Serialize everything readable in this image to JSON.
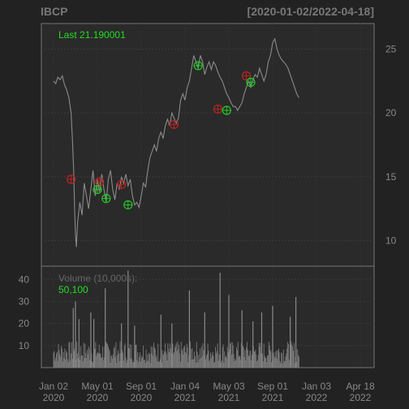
{
  "chart_data": {
    "type": "line",
    "title": "IBCP",
    "date_range": "[2020-01-02/2022-04-18]",
    "last_label": "Last 21.190001",
    "y_ticks": [
      10,
      15,
      20,
      25
    ],
    "ylim": [
      8,
      27
    ],
    "x_ticks": [
      {
        "line1": "Jan 02",
        "line2": "2020",
        "t": 0
      },
      {
        "line1": "May 01",
        "line2": "2020",
        "t": 0.1
      },
      {
        "line1": "Sep 01",
        "line2": "2020",
        "t": 0.2
      },
      {
        "line1": "Jan 04",
        "line2": "2021",
        "t": 0.3
      },
      {
        "line1": "May 03",
        "line2": "2021",
        "t": 0.4
      },
      {
        "line1": "Sep 01",
        "line2": "2021",
        "t": 0.5
      },
      {
        "line1": "Jan 03",
        "line2": "2022",
        "t": 0.6
      },
      {
        "line1": "Apr 18",
        "line2": "2022",
        "t": 0.7
      }
    ],
    "price_series": [
      [
        0.0,
        22.5
      ],
      [
        0.005,
        22.3
      ],
      [
        0.01,
        22.8
      ],
      [
        0.015,
        22.6
      ],
      [
        0.02,
        22.9
      ],
      [
        0.025,
        22.2
      ],
      [
        0.03,
        21.8
      ],
      [
        0.035,
        21.2
      ],
      [
        0.04,
        20.0
      ],
      [
        0.043,
        18.0
      ],
      [
        0.046,
        15.5
      ],
      [
        0.048,
        12.5
      ],
      [
        0.05,
        10.5
      ],
      [
        0.052,
        9.5
      ],
      [
        0.055,
        11.5
      ],
      [
        0.06,
        13.0
      ],
      [
        0.065,
        12.0
      ],
      [
        0.07,
        14.5
      ],
      [
        0.075,
        13.5
      ],
      [
        0.08,
        12.5
      ],
      [
        0.085,
        14.0
      ],
      [
        0.09,
        15.5
      ],
      [
        0.095,
        13.5
      ],
      [
        0.1,
        14.8
      ],
      [
        0.105,
        13.8
      ],
      [
        0.11,
        15.2
      ],
      [
        0.115,
        14.0
      ],
      [
        0.12,
        13.0
      ],
      [
        0.125,
        14.8
      ],
      [
        0.13,
        15.5
      ],
      [
        0.135,
        14.0
      ],
      [
        0.14,
        13.2
      ],
      [
        0.145,
        14.5
      ],
      [
        0.15,
        14.0
      ],
      [
        0.155,
        15.0
      ],
      [
        0.16,
        14.5
      ],
      [
        0.165,
        15.2
      ],
      [
        0.17,
        14.3
      ],
      [
        0.175,
        14.8
      ],
      [
        0.18,
        13.5
      ],
      [
        0.185,
        12.8
      ],
      [
        0.19,
        13.0
      ],
      [
        0.195,
        12.6
      ],
      [
        0.2,
        13.5
      ],
      [
        0.205,
        14.5
      ],
      [
        0.21,
        14.2
      ],
      [
        0.215,
        15.5
      ],
      [
        0.22,
        16.5
      ],
      [
        0.225,
        17.0
      ],
      [
        0.23,
        17.5
      ],
      [
        0.235,
        17.0
      ],
      [
        0.24,
        18.0
      ],
      [
        0.245,
        18.5
      ],
      [
        0.25,
        18.0
      ],
      [
        0.255,
        19.0
      ],
      [
        0.26,
        19.5
      ],
      [
        0.265,
        19.0
      ],
      [
        0.27,
        20.0
      ],
      [
        0.275,
        19.6
      ],
      [
        0.28,
        19.2
      ],
      [
        0.285,
        19.6
      ],
      [
        0.29,
        21.0
      ],
      [
        0.295,
        21.5
      ],
      [
        0.3,
        21.0
      ],
      [
        0.305,
        22.0
      ],
      [
        0.31,
        22.5
      ],
      [
        0.315,
        23.5
      ],
      [
        0.32,
        24.5
      ],
      [
        0.325,
        24.0
      ],
      [
        0.33,
        23.5
      ],
      [
        0.335,
        24.5
      ],
      [
        0.34,
        24.0
      ],
      [
        0.345,
        23.0
      ],
      [
        0.35,
        23.6
      ],
      [
        0.355,
        24.0
      ],
      [
        0.36,
        23.4
      ],
      [
        0.365,
        24.0
      ],
      [
        0.37,
        23.7
      ],
      [
        0.375,
        23.2
      ],
      [
        0.38,
        22.8
      ],
      [
        0.385,
        22.5
      ],
      [
        0.39,
        22.0
      ],
      [
        0.395,
        21.5
      ],
      [
        0.4,
        21.2
      ],
      [
        0.405,
        20.8
      ],
      [
        0.41,
        20.5
      ],
      [
        0.415,
        20.5
      ],
      [
        0.42,
        20.2
      ],
      [
        0.425,
        20.5
      ],
      [
        0.43,
        20.8
      ],
      [
        0.435,
        21.5
      ],
      [
        0.44,
        22.0
      ],
      [
        0.445,
        22.5
      ],
      [
        0.45,
        22.0
      ],
      [
        0.455,
        22.6
      ],
      [
        0.46,
        23.0
      ],
      [
        0.465,
        22.8
      ],
      [
        0.47,
        23.5
      ],
      [
        0.475,
        23.0
      ],
      [
        0.48,
        22.5
      ],
      [
        0.485,
        23.0
      ],
      [
        0.49,
        24.0
      ],
      [
        0.495,
        24.5
      ],
      [
        0.5,
        25.5
      ],
      [
        0.505,
        25.8
      ],
      [
        0.51,
        25.0
      ],
      [
        0.515,
        24.5
      ],
      [
        0.52,
        24.2
      ],
      [
        0.525,
        24.0
      ],
      [
        0.53,
        23.8
      ],
      [
        0.535,
        23.5
      ],
      [
        0.54,
        23.0
      ],
      [
        0.545,
        22.5
      ],
      [
        0.55,
        22.0
      ],
      [
        0.555,
        21.5
      ],
      [
        0.56,
        21.2
      ]
    ],
    "buy_markers": [
      [
        0.1,
        14.0
      ],
      [
        0.12,
        13.3
      ],
      [
        0.17,
        12.8
      ],
      [
        0.33,
        23.7
      ],
      [
        0.395,
        20.2
      ],
      [
        0.45,
        22.4
      ]
    ],
    "sell_markers": [
      [
        0.04,
        14.8
      ],
      [
        0.105,
        14.6
      ],
      [
        0.155,
        14.4
      ],
      [
        0.275,
        19.1
      ],
      [
        0.375,
        20.3
      ],
      [
        0.44,
        22.9
      ]
    ],
    "volume": {
      "label": "Volume (10,000s):",
      "value_label": "50,100",
      "y_ticks": [
        10,
        20,
        30,
        40
      ],
      "ylim": [
        0,
        46
      ],
      "spikes": [
        [
          0.045,
          27
        ],
        [
          0.05,
          30
        ],
        [
          0.058,
          22
        ],
        [
          0.085,
          25
        ],
        [
          0.092,
          22
        ],
        [
          0.118,
          36
        ],
        [
          0.155,
          20
        ],
        [
          0.17,
          44
        ],
        [
          0.185,
          19
        ],
        [
          0.245,
          24
        ],
        [
          0.27,
          20
        ],
        [
          0.31,
          35
        ],
        [
          0.345,
          25
        ],
        [
          0.38,
          43
        ],
        [
          0.4,
          33
        ],
        [
          0.43,
          26
        ],
        [
          0.455,
          21
        ],
        [
          0.475,
          25
        ],
        [
          0.5,
          28
        ],
        [
          0.54,
          23
        ],
        [
          0.553,
          32
        ]
      ]
    }
  }
}
